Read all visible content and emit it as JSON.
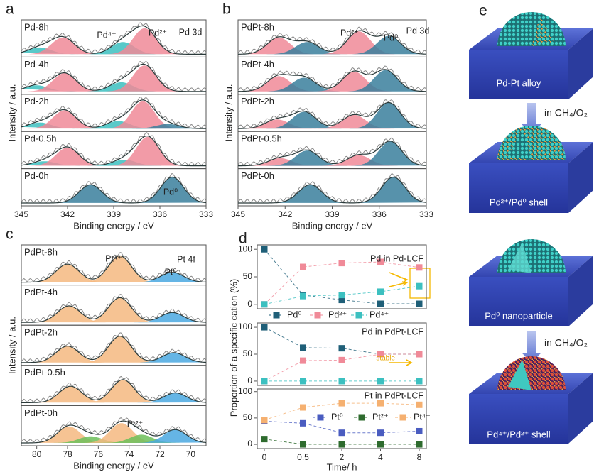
{
  "chart_data": [
    {
      "type": "xps",
      "panel": "a",
      "xlabel": "Binding energy / eV",
      "ylabel": "Intensity / a.u.",
      "xlim": [
        345,
        333
      ],
      "xticks": [
        345,
        342,
        339,
        336,
        333
      ],
      "annotations": [
        "Pd⁴⁺",
        "Pd²⁺",
        "Pd 3d",
        "Pd⁰"
      ],
      "spectra": [
        {
          "name": "Pd-8h",
          "peaks": [
            {
              "x": 343.8,
              "value": 0.22,
              "color": "#3cc0c0"
            },
            {
              "x": 342.3,
              "value": 0.55,
              "color": "#f08a98"
            },
            {
              "x": 338.4,
              "value": 0.4,
              "color": "#3cc0c0"
            },
            {
              "x": 337.0,
              "value": 0.85,
              "color": "#f08a98"
            }
          ]
        },
        {
          "name": "Pd-4h",
          "peaks": [
            {
              "x": 344.0,
              "value": 0.2,
              "color": "#3cc0c0"
            },
            {
              "x": 342.2,
              "value": 0.6,
              "color": "#f08a98"
            },
            {
              "x": 338.5,
              "value": 0.3,
              "color": "#3cc0c0"
            },
            {
              "x": 337.0,
              "value": 0.85,
              "color": "#f08a98"
            }
          ]
        },
        {
          "name": "Pd-2h",
          "peaks": [
            {
              "x": 343.8,
              "value": 0.2,
              "color": "#3cc0c0"
            },
            {
              "x": 342.2,
              "value": 0.6,
              "color": "#f08a98"
            },
            {
              "x": 338.7,
              "value": 0.25,
              "color": "#3cc0c0"
            },
            {
              "x": 337.1,
              "value": 0.9,
              "color": "#f08a98"
            },
            {
              "x": 335.5,
              "value": 0.15,
              "color": "#3a7f9c"
            }
          ]
        },
        {
          "name": "Pd-0.5h",
          "peaks": [
            {
              "x": 343.5,
              "value": 0.15,
              "color": "#3cc0c0"
            },
            {
              "x": 342.0,
              "value": 0.6,
              "color": "#f08a98"
            },
            {
              "x": 338.3,
              "value": 0.2,
              "color": "#3cc0c0"
            },
            {
              "x": 336.8,
              "value": 0.95,
              "color": "#f08a98"
            }
          ]
        },
        {
          "name": "Pd-0h",
          "peaks": [
            {
              "x": 340.5,
              "value": 0.6,
              "color": "#3a7f9c"
            },
            {
              "x": 335.2,
              "value": 0.85,
              "color": "#3a7f9c"
            }
          ]
        }
      ]
    },
    {
      "type": "xps",
      "panel": "b",
      "xlabel": "Binding energy / eV",
      "ylabel": "Intensity / a.u.",
      "xlim": [
        345,
        333
      ],
      "xticks": [
        345,
        342,
        339,
        336,
        333
      ],
      "annotations": [
        "Pd²⁺",
        "Pd⁰",
        "Pd 3d"
      ],
      "spectra": [
        {
          "name": "PdPt-8h",
          "peaks": [
            {
              "x": 342.4,
              "value": 0.55,
              "color": "#f08a98"
            },
            {
              "x": 340.6,
              "value": 0.4,
              "color": "#3a7f9c"
            },
            {
              "x": 337.3,
              "value": 0.75,
              "color": "#f08a98"
            },
            {
              "x": 335.4,
              "value": 0.6,
              "color": "#3a7f9c"
            }
          ]
        },
        {
          "name": "PdPt-4h",
          "peaks": [
            {
              "x": 342.4,
              "value": 0.5,
              "color": "#f08a98"
            },
            {
              "x": 340.8,
              "value": 0.45,
              "color": "#3a7f9c"
            },
            {
              "x": 337.6,
              "value": 0.65,
              "color": "#f08a98"
            },
            {
              "x": 335.6,
              "value": 0.7,
              "color": "#3a7f9c"
            }
          ]
        },
        {
          "name": "PdPt-2h",
          "peaks": [
            {
              "x": 342.5,
              "value": 0.3,
              "color": "#f08a98"
            },
            {
              "x": 340.8,
              "value": 0.55,
              "color": "#3a7f9c"
            },
            {
              "x": 337.6,
              "value": 0.45,
              "color": "#f08a98"
            },
            {
              "x": 335.4,
              "value": 0.85,
              "color": "#3a7f9c"
            }
          ]
        },
        {
          "name": "PdPt-0.5h",
          "peaks": [
            {
              "x": 342.3,
              "value": 0.25,
              "color": "#f08a98"
            },
            {
              "x": 340.6,
              "value": 0.5,
              "color": "#3a7f9c"
            },
            {
              "x": 337.3,
              "value": 0.35,
              "color": "#f08a98"
            },
            {
              "x": 335.3,
              "value": 0.8,
              "color": "#3a7f9c"
            }
          ]
        },
        {
          "name": "PdPt-0h",
          "peaks": [
            {
              "x": 340.4,
              "value": 0.6,
              "color": "#3a7f9c"
            },
            {
              "x": 335.1,
              "value": 0.85,
              "color": "#3a7f9c"
            }
          ]
        }
      ]
    },
    {
      "type": "xps",
      "panel": "c",
      "xlabel": "Binding energy / eV",
      "ylabel": "Intensity / a.u.",
      "xlim": [
        81,
        69
      ],
      "xticks": [
        80,
        78,
        76,
        74,
        72,
        70
      ],
      "annotations": [
        "Pt⁴⁺",
        "Pt 4f",
        "Pt⁰",
        "Pt²⁺"
      ],
      "spectra": [
        {
          "name": "PdPt-8h",
          "peaks": [
            {
              "x": 78.0,
              "value": 0.55,
              "color": "#f5b880"
            },
            {
              "x": 74.6,
              "value": 0.8,
              "color": "#f5b880"
            },
            {
              "x": 71.2,
              "value": 0.3,
              "color": "#4aa8e0"
            }
          ]
        },
        {
          "name": "PdPt-4h",
          "peaks": [
            {
              "x": 77.9,
              "value": 0.5,
              "color": "#f5b880"
            },
            {
              "x": 74.6,
              "value": 0.75,
              "color": "#f5b880"
            },
            {
              "x": 71.2,
              "value": 0.3,
              "color": "#4aa8e0"
            }
          ]
        },
        {
          "name": "PdPt-2h",
          "peaks": [
            {
              "x": 78.0,
              "value": 0.5,
              "color": "#f5b880"
            },
            {
              "x": 74.6,
              "value": 0.8,
              "color": "#f5b880"
            },
            {
              "x": 71.1,
              "value": 0.3,
              "color": "#4aa8e0"
            }
          ]
        },
        {
          "name": "PdPt-0.5h",
          "peaks": [
            {
              "x": 77.8,
              "value": 0.5,
              "color": "#f5b880"
            },
            {
              "x": 74.4,
              "value": 0.7,
              "color": "#f5b880"
            },
            {
              "x": 71.0,
              "value": 0.3,
              "color": "#4aa8e0"
            }
          ]
        },
        {
          "name": "PdPt-0h",
          "peaks": [
            {
              "x": 77.9,
              "value": 0.5,
              "color": "#f5b880"
            },
            {
              "x": 76.5,
              "value": 0.2,
              "color": "#6cbf5a"
            },
            {
              "x": 74.5,
              "value": 0.6,
              "color": "#f5b880"
            },
            {
              "x": 73.2,
              "value": 0.25,
              "color": "#6cbf5a"
            },
            {
              "x": 71.0,
              "value": 0.4,
              "color": "#4aa8e0"
            }
          ]
        }
      ]
    },
    {
      "type": "scatter",
      "panel": "d",
      "ylabel": "Proportion of a specific cation (%)",
      "ylim": [
        -8,
        108
      ],
      "yticks": [
        0,
        50,
        100
      ],
      "annotations": [
        "Pd in Pd-LCF"
      ],
      "series": [
        {
          "name": "Pd⁰",
          "color": "#1f5f78",
          "values": [
            100,
            17,
            8,
            1,
            1
          ]
        },
        {
          "name": "Pd²⁺",
          "color": "#f08a98",
          "values": [
            0,
            68,
            75,
            77,
            67
          ]
        },
        {
          "name": "Pd⁴⁺",
          "color": "#3cc0c0",
          "values": [
            0,
            15,
            17,
            23,
            33
          ]
        }
      ]
    },
    {
      "type": "scatter",
      "ylim": [
        -8,
        108
      ],
      "yticks": [
        0,
        50,
        100
      ],
      "annotations": [
        "Pd in PdPt-LCF",
        "stable"
      ],
      "series": [
        {
          "color": "#1f5f78",
          "values": [
            100,
            62,
            61,
            50,
            50
          ]
        },
        {
          "color": "#f08a98",
          "values": [
            0,
            38,
            39,
            50,
            50
          ]
        },
        {
          "color": "#3cc0c0",
          "values": [
            0,
            0,
            0,
            0,
            0
          ]
        }
      ]
    },
    {
      "type": "scatter",
      "xlabel": "Time/ h",
      "categories": [
        "0",
        "0.5",
        "2",
        "4",
        "8"
      ],
      "ylim": [
        -8,
        105
      ],
      "yticks": [
        0,
        50,
        100
      ],
      "annotations": [
        "Pt in PdPt-LCF"
      ],
      "series": [
        {
          "name": "Pt⁰",
          "color": "#4a5cc0",
          "values": [
            44,
            40,
            22,
            22,
            25
          ]
        },
        {
          "name": "Pt²⁺",
          "color": "#2e6b2e",
          "values": [
            10,
            0,
            0,
            0,
            0
          ]
        },
        {
          "name": "Pt⁴⁺",
          "color": "#f5b070",
          "values": [
            46,
            70,
            78,
            78,
            75
          ]
        }
      ]
    }
  ],
  "schematic": {
    "panel": "e",
    "labels": [
      "Pd-Pt alloy",
      "Pd²⁺/Pd⁰ shell",
      "Pd⁰ nanoparticle",
      "Pd⁴⁺/Pd²⁺ shell"
    ],
    "steps": [
      "in CH₄/O₂",
      "in CH₄/O₂"
    ]
  }
}
